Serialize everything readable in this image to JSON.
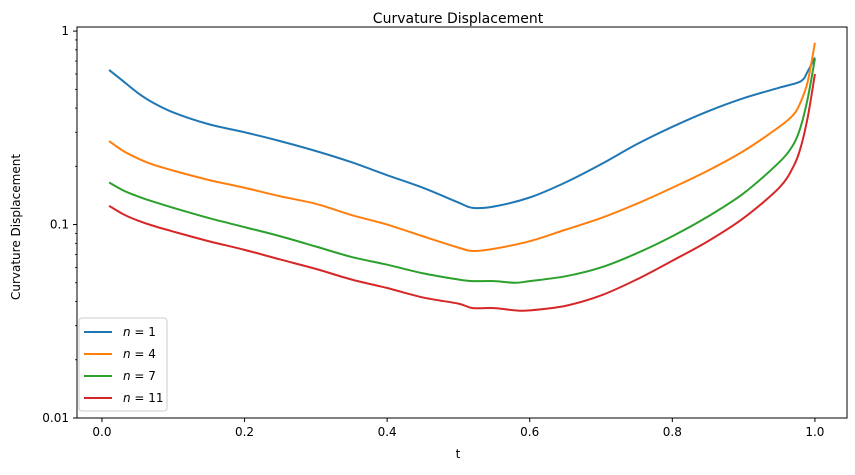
{
  "chart_data": {
    "type": "line",
    "title": "Curvature Displacement",
    "xlabel": "t",
    "ylabel": "Curvature Displacement",
    "xscale": "linear",
    "yscale": "log",
    "xlim": [
      -0.035,
      1.045
    ],
    "ylim": [
      0.01,
      1.05
    ],
    "xticks": [
      0.0,
      0.2,
      0.4,
      0.6,
      0.8,
      1.0
    ],
    "xtick_labels": [
      "0.0",
      "0.2",
      "0.4",
      "0.6",
      "0.8",
      "1.0"
    ],
    "yticks": [
      0.01,
      0.1,
      1
    ],
    "ytick_labels": [
      "0.01",
      "0.1",
      "1"
    ],
    "grid": false,
    "legend_position": "lower-left",
    "series": [
      {
        "name": "n = 1",
        "label_var": "n",
        "label_val": "1",
        "color": "#1f77b4",
        "x": [
          0.01,
          0.03,
          0.05,
          0.07,
          0.1,
          0.15,
          0.2,
          0.25,
          0.3,
          0.35,
          0.4,
          0.45,
          0.5,
          0.52,
          0.55,
          0.6,
          0.65,
          0.7,
          0.75,
          0.8,
          0.85,
          0.9,
          0.95,
          0.98,
          0.99,
          1.0
        ],
        "y": [
          0.63,
          0.55,
          0.48,
          0.43,
          0.38,
          0.33,
          0.3,
          0.27,
          0.24,
          0.21,
          0.18,
          0.155,
          0.13,
          0.122,
          0.124,
          0.138,
          0.165,
          0.205,
          0.26,
          0.32,
          0.385,
          0.45,
          0.51,
          0.55,
          0.62,
          0.73
        ]
      },
      {
        "name": "n = 4",
        "label_var": "n",
        "label_val": "4",
        "color": "#ff7f0e",
        "x": [
          0.01,
          0.03,
          0.05,
          0.07,
          0.1,
          0.15,
          0.2,
          0.25,
          0.3,
          0.35,
          0.4,
          0.45,
          0.5,
          0.52,
          0.55,
          0.6,
          0.65,
          0.7,
          0.75,
          0.8,
          0.85,
          0.9,
          0.95,
          0.97,
          0.98,
          0.99,
          1.0
        ],
        "y": [
          0.27,
          0.24,
          0.22,
          0.205,
          0.19,
          0.17,
          0.155,
          0.14,
          0.128,
          0.112,
          0.1,
          0.087,
          0.076,
          0.073,
          0.075,
          0.082,
          0.094,
          0.108,
          0.128,
          0.155,
          0.19,
          0.24,
          0.32,
          0.37,
          0.43,
          0.55,
          0.87
        ]
      },
      {
        "name": "n = 7",
        "label_var": "n",
        "label_val": "7",
        "color": "#2ca02c",
        "x": [
          0.01,
          0.03,
          0.05,
          0.07,
          0.1,
          0.15,
          0.2,
          0.25,
          0.3,
          0.35,
          0.4,
          0.45,
          0.5,
          0.52,
          0.55,
          0.58,
          0.6,
          0.65,
          0.7,
          0.75,
          0.8,
          0.85,
          0.9,
          0.95,
          0.97,
          0.98,
          0.99,
          1.0
        ],
        "y": [
          0.165,
          0.15,
          0.14,
          0.132,
          0.122,
          0.108,
          0.097,
          0.087,
          0.077,
          0.068,
          0.062,
          0.056,
          0.052,
          0.051,
          0.051,
          0.05,
          0.051,
          0.054,
          0.06,
          0.071,
          0.087,
          0.11,
          0.145,
          0.21,
          0.26,
          0.32,
          0.45,
          0.72
        ]
      },
      {
        "name": "n = 11",
        "label_var": "n",
        "label_val": "11",
        "color": "#d62728",
        "x": [
          0.01,
          0.03,
          0.05,
          0.07,
          0.1,
          0.15,
          0.2,
          0.25,
          0.3,
          0.35,
          0.4,
          0.45,
          0.5,
          0.52,
          0.55,
          0.58,
          0.6,
          0.65,
          0.7,
          0.75,
          0.8,
          0.85,
          0.9,
          0.95,
          0.97,
          0.98,
          0.99,
          1.0
        ],
        "y": [
          0.125,
          0.113,
          0.105,
          0.099,
          0.092,
          0.082,
          0.074,
          0.066,
          0.059,
          0.052,
          0.047,
          0.042,
          0.039,
          0.037,
          0.037,
          0.036,
          0.036,
          0.038,
          0.043,
          0.052,
          0.065,
          0.082,
          0.108,
          0.155,
          0.2,
          0.25,
          0.36,
          0.6
        ]
      }
    ]
  }
}
